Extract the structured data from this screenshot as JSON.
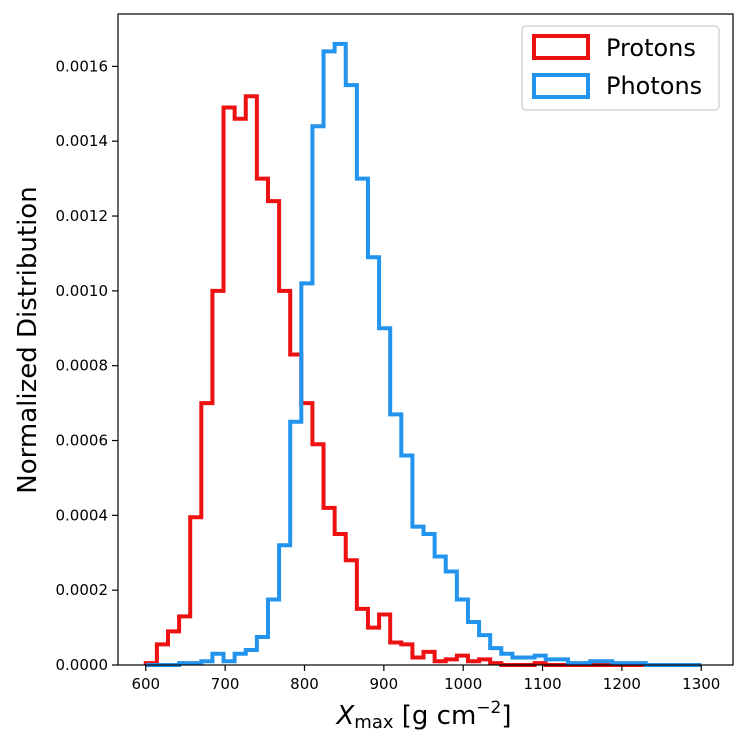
{
  "chart_data": {
    "type": "histogram",
    "xlabel_main": "X",
    "xlabel_sub": "max",
    "xlabel_units_prefix": " [g cm",
    "xlabel_units_exp": "−2",
    "xlabel_units_suffix": "]",
    "ylabel": "Normalized Distribution",
    "xlim": [
      565,
      1340
    ],
    "ylim": [
      0,
      0.00174
    ],
    "xticks": [
      600,
      700,
      800,
      900,
      1000,
      1100,
      1200,
      1300
    ],
    "xtick_labels": [
      "600",
      "700",
      "800",
      "900",
      "1000",
      "1100",
      "1200",
      "1300"
    ],
    "yticks": [
      0,
      0.0002,
      0.0004,
      0.0006,
      0.0008,
      0.001,
      0.0012,
      0.0014,
      0.0016
    ],
    "ytick_labels": [
      "0.0000",
      "0.0002",
      "0.0004",
      "0.0006",
      "0.0008",
      "0.0010",
      "0.0012",
      "0.0014",
      "0.0016"
    ],
    "bin_start": 600,
    "bin_width": 14,
    "legend_position": "upper right",
    "series": [
      {
        "name": "Protons",
        "color": "#ee1111",
        "values": [
          5e-06,
          5.5e-05,
          9e-05,
          0.00013,
          0.000395,
          0.0007,
          0.001,
          0.00149,
          0.00146,
          0.00152,
          0.0013,
          0.00124,
          0.001,
          0.00083,
          0.0007,
          0.00059,
          0.00042,
          0.00035,
          0.00028,
          0.00015,
          0.0001,
          0.000135,
          6e-05,
          5.5e-05,
          2e-05,
          3.5e-05,
          1e-05,
          1.5e-05,
          2.5e-05,
          1e-05,
          1.5e-05,
          5e-06,
          0.0,
          0.0,
          0.0,
          5e-06,
          0.0,
          0.0,
          0.0,
          0.0,
          0.0,
          0.0,
          0.0,
          0.0,
          0.0,
          0.0,
          0.0,
          0.0,
          0.0,
          0.0
        ]
      },
      {
        "name": "Photons",
        "color": "#2294ee",
        "values": [
          0.0,
          0.0,
          0.0,
          5e-06,
          5e-06,
          1e-05,
          3e-05,
          1e-05,
          3e-05,
          4e-05,
          7.5e-05,
          0.000175,
          0.00032,
          0.00065,
          0.00102,
          0.00144,
          0.00164,
          0.00166,
          0.00155,
          0.0013,
          0.00109,
          0.0009,
          0.00067,
          0.00056,
          0.00037,
          0.00035,
          0.00029,
          0.00025,
          0.000175,
          0.000115,
          8e-05,
          4.5e-05,
          3e-05,
          2e-05,
          2e-05,
          2.5e-05,
          1.5e-05,
          1.5e-05,
          5e-06,
          5e-06,
          1e-05,
          1e-05,
          5e-06,
          5e-06,
          5e-06,
          0.0,
          0.0,
          0.0,
          0.0,
          0.0
        ]
      }
    ]
  }
}
